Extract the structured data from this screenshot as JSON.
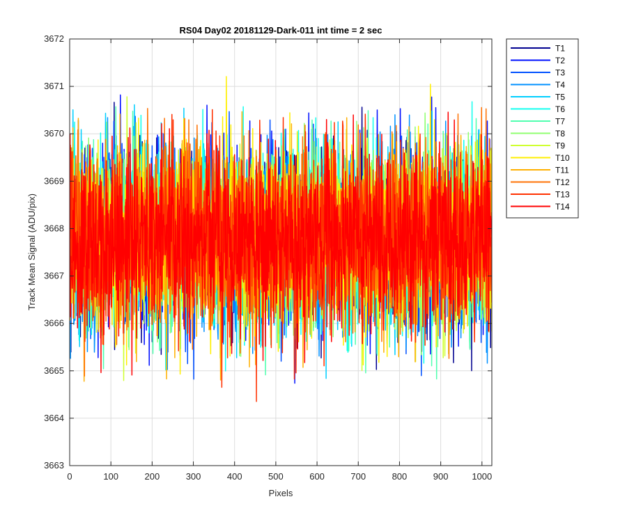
{
  "chart_data": {
    "type": "line",
    "title": "RS04 Day02 20181129-Dark-011 int time = 2 sec",
    "xlabel": "Pixels",
    "ylabel": "Track Mean Signal (ADU/pix)",
    "xlim": [
      0,
      1024
    ],
    "ylim": [
      3663,
      3672
    ],
    "x_ticks": [
      0,
      100,
      200,
      300,
      400,
      500,
      600,
      700,
      800,
      900,
      1000
    ],
    "y_ticks": [
      3663,
      3664,
      3665,
      3666,
      3667,
      3668,
      3669,
      3670,
      3671,
      3672
    ],
    "grid": true,
    "legend_placement": "outside-top-right",
    "n_points_per_series": 1024,
    "series": [
      {
        "name": "T1",
        "color": "#00008F",
        "mean": 3667.8,
        "sd": 0.95,
        "min": 3664.7,
        "max": 3670.8
      },
      {
        "name": "T2",
        "color": "#0010FF",
        "mean": 3667.8,
        "sd": 0.95,
        "min": 3664.7,
        "max": 3670.9
      },
      {
        "name": "T3",
        "color": "#0050FF",
        "mean": 3667.8,
        "sd": 0.95,
        "min": 3664.8,
        "max": 3670.7
      },
      {
        "name": "T4",
        "color": "#0090FF",
        "mean": 3667.8,
        "sd": 0.95,
        "min": 3663.6,
        "max": 3671.2
      },
      {
        "name": "T5",
        "color": "#00CFFF",
        "mean": 3667.8,
        "sd": 0.95,
        "min": 3664.8,
        "max": 3671.7
      },
      {
        "name": "T6",
        "color": "#10FFEF",
        "mean": 3667.8,
        "sd": 0.95,
        "min": 3663.9,
        "max": 3670.7
      },
      {
        "name": "T7",
        "color": "#50FFAF",
        "mean": 3667.8,
        "sd": 0.95,
        "min": 3664.7,
        "max": 3670.6
      },
      {
        "name": "T8",
        "color": "#90FF70",
        "mean": 3667.8,
        "sd": 0.95,
        "min": 3664.6,
        "max": 3670.6
      },
      {
        "name": "T9",
        "color": "#CFFF30",
        "mean": 3667.8,
        "sd": 0.95,
        "min": 3664.2,
        "max": 3671.1
      },
      {
        "name": "T10",
        "color": "#FFEF00",
        "mean": 3667.8,
        "sd": 0.95,
        "min": 3664.3,
        "max": 3671.4
      },
      {
        "name": "T11",
        "color": "#FFB000",
        "mean": 3667.8,
        "sd": 0.95,
        "min": 3663.4,
        "max": 3670.6
      },
      {
        "name": "T12",
        "color": "#FF7000",
        "mean": 3667.8,
        "sd": 0.95,
        "min": 3664.3,
        "max": 3670.6
      },
      {
        "name": "T13",
        "color": "#FF3000",
        "mean": 3667.8,
        "sd": 0.95,
        "min": 3664.3,
        "max": 3670.6
      },
      {
        "name": "T14",
        "color": "#FF0000",
        "mean": 3667.8,
        "sd": 0.95,
        "min": 3664.3,
        "max": 3671.3
      }
    ]
  }
}
